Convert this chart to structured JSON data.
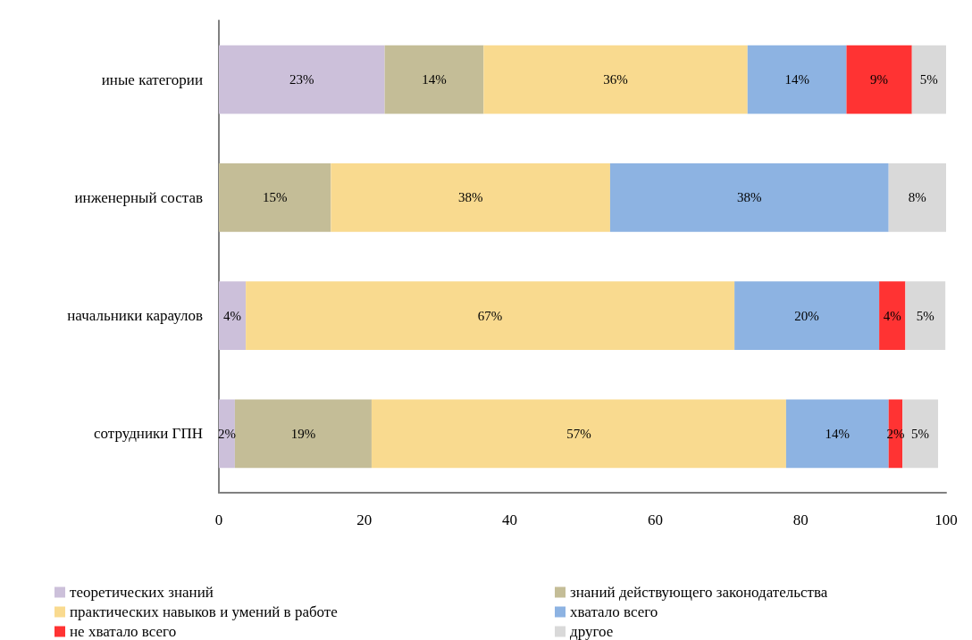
{
  "chart_data": {
    "type": "bar",
    "orientation": "horizontal",
    "stacked": true,
    "categories": [
      "иные категории",
      "инженерный состав",
      "начальники караулов",
      "сотрудники ГПН"
    ],
    "series": [
      {
        "name": "теоретических знаний",
        "color": "#ccc0da",
        "values": [
          22.8,
          null,
          3.7,
          2.2
        ],
        "value_labels": [
          "23%",
          null,
          "4%",
          "2%"
        ]
      },
      {
        "name": "знаний действующего законодательства",
        "color": "#c4bd97",
        "values": [
          13.6,
          15.4,
          null,
          18.8
        ],
        "value_labels": [
          "14%",
          "15%",
          null,
          "19%"
        ]
      },
      {
        "name": "практических навыков и умений в работе",
        "color": "#f9da8f",
        "values": [
          36.3,
          38.4,
          67.2,
          57
        ],
        "value_labels": [
          "36%",
          "38%",
          "67%",
          "57%"
        ]
      },
      {
        "name": "хватало всего",
        "color": "#8db3e2",
        "values": [
          13.6,
          38.3,
          19.9,
          14.1
        ],
        "value_labels": [
          "14%",
          "38%",
          "20%",
          "14%"
        ]
      },
      {
        "name": "не хватало всего",
        "color": "#ff3333",
        "values": [
          9,
          null,
          3.6,
          1.9
        ],
        "value_labels": [
          "9%",
          null,
          "4%",
          "2%"
        ]
      },
      {
        "name": "другое",
        "color": "#d9d9d9",
        "values": [
          4.7,
          7.9,
          5.5,
          4.9
        ],
        "value_labels": [
          "5%",
          "8%",
          "5%",
          "5%"
        ]
      }
    ],
    "xlim": [
      0,
      100
    ],
    "xticks": [
      0,
      20,
      40,
      60,
      80,
      100
    ],
    "grid": false,
    "legend": "bottom"
  }
}
